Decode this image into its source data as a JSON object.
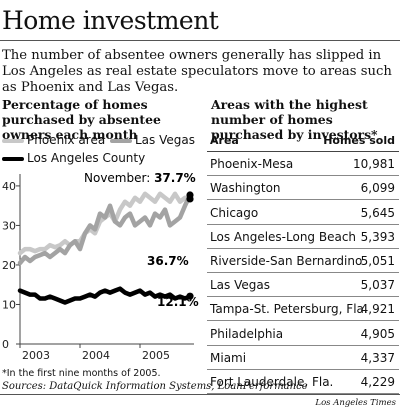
{
  "header": {
    "title": "Home investment",
    "intro": "The number of absentee owners generally has slipped in Los Angeles as real estate speculators move to areas such as Phoenix and Las Vegas."
  },
  "colors": {
    "phoenix": "#c8c8c8",
    "las_vegas": "#a3a3a3",
    "los_angeles": "#000000"
  },
  "legend": {
    "phoenix": "Phoenix area",
    "las_vegas": "Las Vegas",
    "los_angeles": "Los Angeles County"
  },
  "annotations": {
    "november_prefix": "November: ",
    "las_vegas_end": "37.7%",
    "phoenix_end": "36.7%",
    "los_angeles_end": "12.1%"
  },
  "footnote": "*In the first nine months of 2005.",
  "sources": "Sources: DataQuick Information Systems, LoanPerformance",
  "credit": "Los Angeles Times",
  "chart_data": [
    {
      "type": "line",
      "title": "Percentage of homes purchased by absentee owners each month",
      "xlabel": "",
      "ylabel": "",
      "x_ticks": [
        "2003",
        "2004",
        "2005"
      ],
      "y_ticks": [
        0,
        10,
        20,
        30,
        40
      ],
      "ylim": [
        0,
        42
      ],
      "x_start": "2003-01",
      "x_end": "2005-11",
      "grid": false,
      "legend_position": "top",
      "series": [
        {
          "name": "Phoenix area",
          "values": [
            23,
            24,
            24,
            23.5,
            24,
            24,
            25,
            24.5,
            25,
            26,
            25,
            26,
            26,
            28,
            29,
            28,
            31,
            32,
            33,
            31,
            34,
            36,
            35,
            37,
            36,
            38,
            37,
            36,
            38,
            37,
            36,
            38,
            36,
            37,
            36.7
          ]
        },
        {
          "name": "Las Vegas",
          "values": [
            20.5,
            22,
            21,
            22,
            22.5,
            23,
            22,
            23,
            24,
            23,
            25,
            26,
            24,
            28,
            30,
            29,
            33,
            32,
            35,
            31,
            30,
            32,
            33,
            30,
            31,
            32,
            30,
            33,
            32,
            34,
            30,
            31,
            32,
            35,
            37.7
          ]
        },
        {
          "name": "Los Angeles County",
          "values": [
            13.5,
            13,
            12.5,
            12.5,
            11.5,
            11.5,
            12,
            11.5,
            11,
            10.5,
            11,
            11.5,
            11.5,
            12,
            12.5,
            12,
            13,
            13.5,
            13,
            13.5,
            14,
            13,
            12.5,
            13,
            13.5,
            12.5,
            13,
            12,
            12.5,
            12,
            12.5,
            11.5,
            12,
            11.5,
            12.1
          ]
        }
      ]
    },
    {
      "type": "table",
      "title": "Areas with the highest number of homes purchased by investors*",
      "columns": [
        "Area",
        "Homes sold"
      ],
      "rows": [
        [
          "Phoenix-Mesa",
          "10,981"
        ],
        [
          "Washington",
          "6,099"
        ],
        [
          "Chicago",
          "5,645"
        ],
        [
          "Los Angeles-Long Beach",
          "5,393"
        ],
        [
          "Riverside-San Bernardino",
          "5,051"
        ],
        [
          "Las Vegas",
          "5,037"
        ],
        [
          "Tampa-St. Petersburg, Fla.",
          "4,921"
        ],
        [
          "Philadelphia",
          "4,905"
        ],
        [
          "Miami",
          "4,337"
        ],
        [
          "Fort Lauderdale, Fla.",
          "4,229"
        ]
      ]
    }
  ]
}
